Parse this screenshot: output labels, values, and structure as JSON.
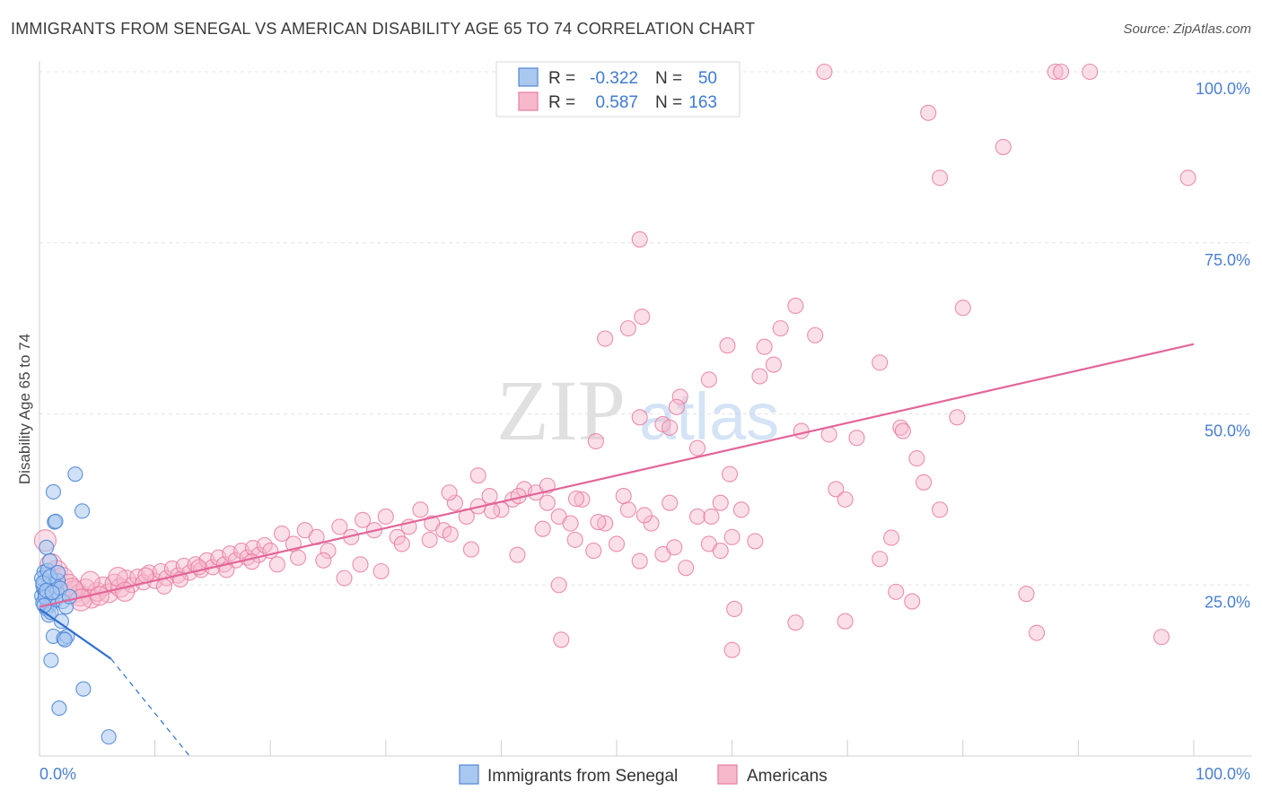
{
  "title": "IMMIGRANTS FROM SENEGAL VS AMERICAN DISABILITY AGE 65 TO 74 CORRELATION CHART",
  "source": "Source: ZipAtlas.com",
  "watermark": {
    "zip": "ZIP",
    "atlas": "atlas"
  },
  "colors": {
    "blue_fill": "#a9c8f0",
    "blue_stroke": "#4f86d6",
    "blue_line": "#2f6fd0",
    "pink_fill": "#f7b8cc",
    "pink_stroke": "#e87ca0",
    "pink_line": "#e2659a",
    "grid": "#e4e4e4",
    "axis_text": "#4a7fd4"
  },
  "legend_top": {
    "rows": [
      {
        "r_label": "R =",
        "r_value": "-0.322",
        "n_label": "N =",
        "n_value": "50"
      },
      {
        "r_label": "R =",
        "r_value": "0.587",
        "n_label": "N =",
        "n_value": "163"
      }
    ]
  },
  "legend_bottom": {
    "items": [
      "Immigrants from Senegal",
      "Americans"
    ]
  },
  "chart_data": {
    "type": "scatter",
    "title": "IMMIGRANTS FROM SENEGAL VS AMERICAN DISABILITY AGE 65 TO 74 CORRELATION CHART",
    "xlabel": "",
    "ylabel": "Disability Age 65 to 74",
    "xlim": [
      0,
      100
    ],
    "ylim": [
      0,
      100
    ],
    "x_tick_labels": [
      "0.0%",
      "100.0%"
    ],
    "y_ticks": [
      25,
      50,
      75,
      100
    ],
    "y_tick_labels": [
      "25.0%",
      "50.0%",
      "75.0%",
      "100.0%"
    ],
    "grid": true,
    "series": [
      {
        "name": "Immigrants from Senegal",
        "color": "blue",
        "R": -0.322,
        "N": 50,
        "trend": {
          "x0": 0,
          "y0": 21.5,
          "x1": 6.2,
          "y1": 14.2,
          "dash_to_x": 13,
          "dash_to_y": 0
        },
        "points": [
          [
            0.2,
            23.4
          ],
          [
            0.3,
            22.4
          ],
          [
            0.4,
            24.4
          ],
          [
            0.5,
            25.5
          ],
          [
            0.6,
            26.5
          ],
          [
            0.7,
            22.6
          ],
          [
            0.3,
            24.9
          ],
          [
            0.5,
            23.8
          ],
          [
            0.8,
            25.2
          ],
          [
            0.4,
            26.9
          ],
          [
            0.6,
            21.5
          ],
          [
            0.9,
            22.1
          ],
          [
            1.0,
            24.6
          ],
          [
            1.2,
            25.6
          ],
          [
            0.2,
            26.0
          ],
          [
            0.7,
            27.1
          ],
          [
            1.1,
            23.0
          ],
          [
            1.3,
            25.0
          ],
          [
            0.9,
            28.5
          ],
          [
            0.6,
            30.5
          ],
          [
            0.8,
            20.6
          ],
          [
            1.4,
            22.8
          ],
          [
            1.5,
            24.0
          ],
          [
            1.6,
            25.6
          ],
          [
            1.8,
            24.5
          ],
          [
            2.0,
            22.6
          ],
          [
            1.0,
            21.0
          ],
          [
            2.3,
            21.8
          ],
          [
            1.2,
            17.5
          ],
          [
            1.9,
            19.7
          ],
          [
            2.1,
            17.2
          ],
          [
            2.4,
            17.5
          ],
          [
            2.2,
            17.0
          ],
          [
            1.0,
            14.0
          ],
          [
            1.7,
            7.0
          ],
          [
            3.8,
            9.8
          ],
          [
            6.0,
            2.8
          ],
          [
            3.1,
            41.2
          ],
          [
            1.2,
            38.6
          ],
          [
            1.3,
            34.2
          ],
          [
            1.4,
            34.3
          ],
          [
            3.7,
            35.8
          ],
          [
            0.5,
            23.2
          ],
          [
            0.3,
            25.3
          ],
          [
            0.6,
            24.2
          ],
          [
            0.9,
            26.2
          ],
          [
            1.1,
            23.9
          ],
          [
            0.4,
            22.0
          ],
          [
            2.6,
            23.3
          ],
          [
            1.6,
            26.8
          ]
        ]
      },
      {
        "name": "Americans",
        "color": "pink",
        "R": 0.587,
        "N": 163,
        "trend": {
          "x0": 0,
          "y0": 21.8,
          "x1": 100,
          "y1": 60.2
        },
        "points": [
          [
            0.5,
            31.5
          ],
          [
            1.0,
            28.0
          ],
          [
            1.5,
            27.0
          ],
          [
            2.0,
            26.0
          ],
          [
            2.5,
            25.0
          ],
          [
            3.0,
            24.0
          ],
          [
            3.5,
            23.5
          ],
          [
            4.0,
            24.5
          ],
          [
            4.5,
            23.0
          ],
          [
            5.0,
            24.0
          ],
          [
            5.5,
            24.8
          ],
          [
            6.0,
            23.8
          ],
          [
            6.5,
            25.2
          ],
          [
            7.0,
            24.6
          ],
          [
            7.5,
            25.8
          ],
          [
            8.0,
            25.0
          ],
          [
            8.5,
            26.2
          ],
          [
            9.0,
            25.4
          ],
          [
            9.5,
            26.8
          ],
          [
            10.0,
            25.6
          ],
          [
            10.5,
            27.0
          ],
          [
            11.0,
            26.0
          ],
          [
            11.5,
            27.4
          ],
          [
            12.0,
            26.4
          ],
          [
            12.5,
            27.8
          ],
          [
            13.0,
            26.8
          ],
          [
            13.5,
            28.0
          ],
          [
            14.0,
            27.2
          ],
          [
            14.5,
            28.6
          ],
          [
            15.0,
            27.6
          ],
          [
            15.5,
            29.0
          ],
          [
            16.0,
            28.0
          ],
          [
            16.5,
            29.6
          ],
          [
            17.0,
            28.6
          ],
          [
            17.5,
            30.0
          ],
          [
            18.0,
            29.0
          ],
          [
            18.5,
            30.4
          ],
          [
            19.0,
            29.4
          ],
          [
            19.5,
            30.8
          ],
          [
            20.0,
            30.0
          ],
          [
            21.0,
            32.5
          ],
          [
            22.0,
            31.0
          ],
          [
            23.0,
            33.0
          ],
          [
            24.0,
            32.0
          ],
          [
            25.0,
            30.0
          ],
          [
            26.0,
            33.5
          ],
          [
            27.0,
            32.0
          ],
          [
            28.0,
            34.5
          ],
          [
            29.0,
            33.0
          ],
          [
            30.0,
            35.0
          ],
          [
            31.0,
            32.0
          ],
          [
            32.0,
            33.5
          ],
          [
            33.0,
            36.0
          ],
          [
            34.0,
            34.0
          ],
          [
            35.0,
            33.0
          ],
          [
            36.0,
            37.0
          ],
          [
            37.0,
            35.0
          ],
          [
            38.0,
            36.5
          ],
          [
            39.0,
            38.0
          ],
          [
            40.0,
            36.0
          ],
          [
            41.0,
            37.5
          ],
          [
            42.0,
            39.0
          ],
          [
            43.0,
            38.5
          ],
          [
            44.0,
            37.0
          ],
          [
            45.0,
            35.0
          ],
          [
            46.0,
            34.0
          ],
          [
            47.0,
            37.5
          ],
          [
            48.0,
            30.0
          ],
          [
            49.0,
            34.0
          ],
          [
            50.0,
            31.0
          ],
          [
            51.0,
            36.0
          ],
          [
            52.0,
            28.5
          ],
          [
            53.0,
            34.0
          ],
          [
            54.0,
            29.5
          ],
          [
            55.0,
            30.5
          ],
          [
            56.0,
            27.5
          ],
          [
            57.0,
            35.0
          ],
          [
            58.0,
            31.0
          ],
          [
            59.0,
            30.0
          ],
          [
            60.0,
            32.0
          ],
          [
            2.8,
            24.4
          ],
          [
            3.6,
            22.8
          ],
          [
            4.4,
            25.6
          ],
          [
            5.2,
            23.4
          ],
          [
            6.8,
            26.2
          ],
          [
            7.4,
            24.0
          ],
          [
            9.2,
            26.4
          ],
          [
            10.8,
            24.8
          ],
          [
            12.2,
            25.8
          ],
          [
            13.8,
            27.6
          ],
          [
            16.2,
            27.2
          ],
          [
            18.4,
            28.4
          ],
          [
            20.6,
            28.0
          ],
          [
            22.4,
            29.0
          ],
          [
            24.6,
            28.6
          ],
          [
            26.4,
            26.0
          ],
          [
            27.8,
            28.0
          ],
          [
            29.6,
            27.0
          ],
          [
            31.4,
            31.0
          ],
          [
            33.8,
            31.6
          ],
          [
            35.6,
            32.4
          ],
          [
            37.4,
            30.2
          ],
          [
            39.2,
            35.8
          ],
          [
            41.4,
            29.4
          ],
          [
            43.6,
            33.2
          ],
          [
            46.4,
            31.6
          ],
          [
            48.4,
            34.2
          ],
          [
            50.6,
            38.0
          ],
          [
            52.4,
            35.2
          ],
          [
            54.6,
            37.0
          ],
          [
            38.0,
            41.0
          ],
          [
            35.5,
            38.5
          ],
          [
            41.5,
            38.0
          ],
          [
            44.0,
            39.5
          ],
          [
            46.5,
            37.6
          ],
          [
            48.2,
            46.0
          ],
          [
            52.0,
            49.5
          ],
          [
            54.0,
            48.5
          ],
          [
            55.5,
            52.5
          ],
          [
            55.2,
            51.0
          ],
          [
            57.0,
            45.0
          ],
          [
            58.0,
            55.0
          ],
          [
            59.8,
            41.2
          ],
          [
            58.2,
            35.0
          ],
          [
            59.0,
            37.0
          ],
          [
            60.8,
            36.0
          ],
          [
            62.8,
            59.8
          ],
          [
            63.6,
            57.2
          ],
          [
            64.2,
            62.5
          ],
          [
            65.5,
            65.8
          ],
          [
            67.2,
            61.5
          ],
          [
            66.0,
            47.5
          ],
          [
            68.4,
            47.0
          ],
          [
            69.0,
            39.0
          ],
          [
            69.8,
            37.5
          ],
          [
            70.8,
            46.5
          ],
          [
            72.8,
            57.5
          ],
          [
            74.6,
            48.0
          ],
          [
            74.8,
            47.5
          ],
          [
            76.6,
            40.0
          ],
          [
            76.0,
            43.5
          ],
          [
            79.5,
            49.5
          ],
          [
            80.0,
            65.5
          ],
          [
            62.0,
            31.4
          ],
          [
            60.2,
            21.5
          ],
          [
            65.5,
            19.5
          ],
          [
            69.8,
            19.7
          ],
          [
            72.8,
            28.8
          ],
          [
            73.8,
            31.9
          ],
          [
            74.2,
            24.0
          ],
          [
            75.6,
            22.6
          ],
          [
            78.0,
            36.0
          ],
          [
            85.5,
            23.7
          ],
          [
            86.4,
            18.0
          ],
          [
            97.2,
            17.4
          ],
          [
            49.0,
            61.0
          ],
          [
            51.0,
            62.5
          ],
          [
            52.2,
            64.2
          ],
          [
            54.6,
            48.0
          ],
          [
            52.0,
            75.5
          ],
          [
            59.6,
            60.0
          ],
          [
            62.4,
            55.5
          ],
          [
            68.0,
            100.0
          ],
          [
            77.0,
            94.0
          ],
          [
            78.0,
            84.5
          ],
          [
            88.0,
            100.0
          ],
          [
            88.5,
            100.0
          ],
          [
            91.0,
            100.0
          ],
          [
            83.5,
            89.0
          ],
          [
            99.5,
            84.5
          ],
          [
            45.0,
            25.0
          ],
          [
            60.0,
            15.5
          ],
          [
            45.2,
            17.0
          ]
        ]
      }
    ]
  }
}
